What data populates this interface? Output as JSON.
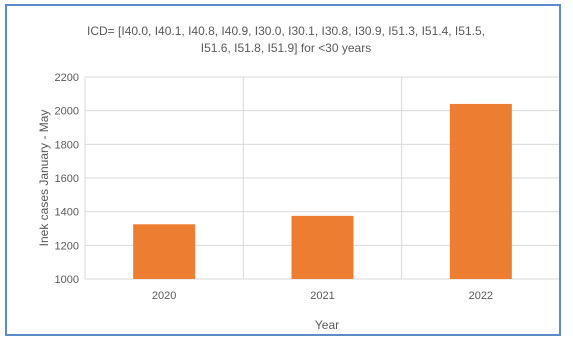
{
  "chart_data": {
    "type": "bar",
    "title_lines": [
      "ICD= [I40.0, I40.1, I40.8, I40.9, I30.0, I30.1, I30.8, I30.9, I51.3, I51.4, I51.5,",
      "I51.6, I51.8, I51.9] for <30 years"
    ],
    "xlabel": "Year",
    "ylabel": "Inek cases January - May",
    "categories": [
      "2020",
      "2021",
      "2022"
    ],
    "values": [
      1325,
      1375,
      2040
    ],
    "ylim": [
      1000,
      2200
    ],
    "yticks": [
      "1000",
      "1200",
      "1400",
      "1600",
      "1800",
      "2000",
      "2200"
    ],
    "grid": true,
    "bar_color": "#ed7d31",
    "grid_color": "#d9d9d9",
    "text_color": "#595959",
    "border_color": "#5b8bc9"
  }
}
